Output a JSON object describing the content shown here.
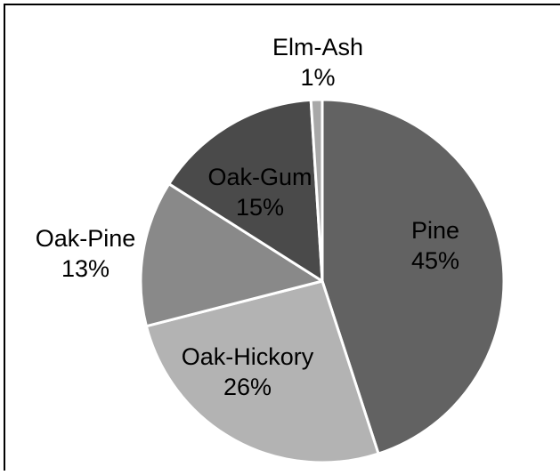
{
  "chart_data": {
    "type": "pie",
    "slices": [
      {
        "label": "Pine",
        "percent_label": "45%",
        "value": 45,
        "color": "#626262",
        "label_color": "#000000"
      },
      {
        "label": "Oak-Hickory",
        "percent_label": "26%",
        "value": 26,
        "color": "#b3b3b3",
        "label_color": "#000000"
      },
      {
        "label": "Oak-Pine",
        "percent_label": "13%",
        "value": 13,
        "color": "#898989",
        "label_color": "#000000"
      },
      {
        "label": "Oak-Gum",
        "percent_label": "15%",
        "value": 15,
        "color": "#4a4a4a",
        "label_color": "#000000"
      },
      {
        "label": "Elm-Ash",
        "percent_label": "1%",
        "value": 1,
        "color": "#a8a8a8",
        "label_color": "#000000"
      }
    ],
    "start_angle_deg": 0,
    "direction": "clockwise",
    "slice_border_color": "#ffffff",
    "frame_border_color": "#000000"
  }
}
